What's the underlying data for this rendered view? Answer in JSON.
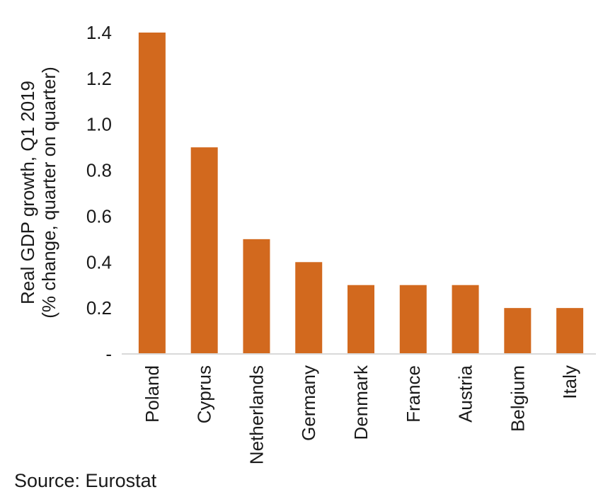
{
  "chart_data": {
    "type": "bar",
    "categories": [
      "Poland",
      "Cyprus",
      "Netherlands",
      "Germany",
      "Denmark",
      "France",
      "Austria",
      "Belgium",
      "Italy"
    ],
    "values": [
      1.4,
      0.9,
      0.5,
      0.4,
      0.3,
      0.3,
      0.3,
      0.2,
      0.2
    ],
    "title": "",
    "xlabel": "",
    "ylabel_lines": [
      "Real GDP growth, Q1 2019",
      "(% change, quarter on quarter)"
    ],
    "ylim": [
      0,
      1.4
    ],
    "yticks": [
      "-",
      "0.2",
      "0.4",
      "0.6",
      "0.8",
      "1.0",
      "1.2",
      "1.4"
    ],
    "ytick_values": [
      0,
      0.2,
      0.4,
      0.6,
      0.8,
      1.0,
      1.2,
      1.4
    ],
    "bar_color": "#D2691E",
    "grid": false,
    "legend": "none"
  },
  "source": "Source: Eurostat"
}
